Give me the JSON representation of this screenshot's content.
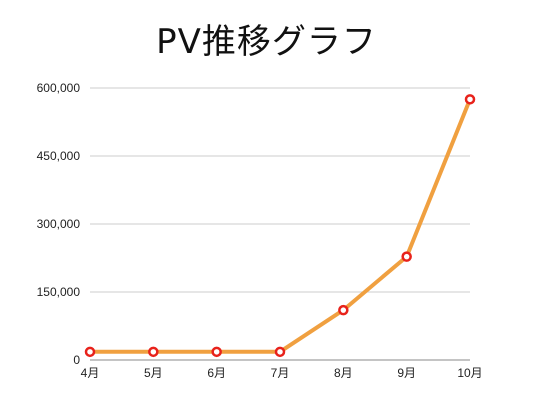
{
  "chart_data": {
    "type": "line",
    "title": "PV推移グラフ",
    "xlabel": "",
    "ylabel": "",
    "categories": [
      "4月",
      "5月",
      "6月",
      "7月",
      "8月",
      "9月",
      "10月"
    ],
    "series": [
      {
        "values": [
          18000,
          18000,
          18000,
          18000,
          110000,
          228000,
          575000
        ]
      }
    ],
    "ylim": [
      0,
      600000
    ],
    "yticks": [
      0,
      150000,
      300000,
      450000,
      600000
    ],
    "ytick_labels": [
      "0",
      "150,000",
      "300,000",
      "450,000",
      "600,000"
    ],
    "grid": true,
    "colors": {
      "line": "#f0a040",
      "marker_edge": "#e8221b",
      "marker_fill": "#ffffff",
      "grid": "#cccccc"
    }
  }
}
